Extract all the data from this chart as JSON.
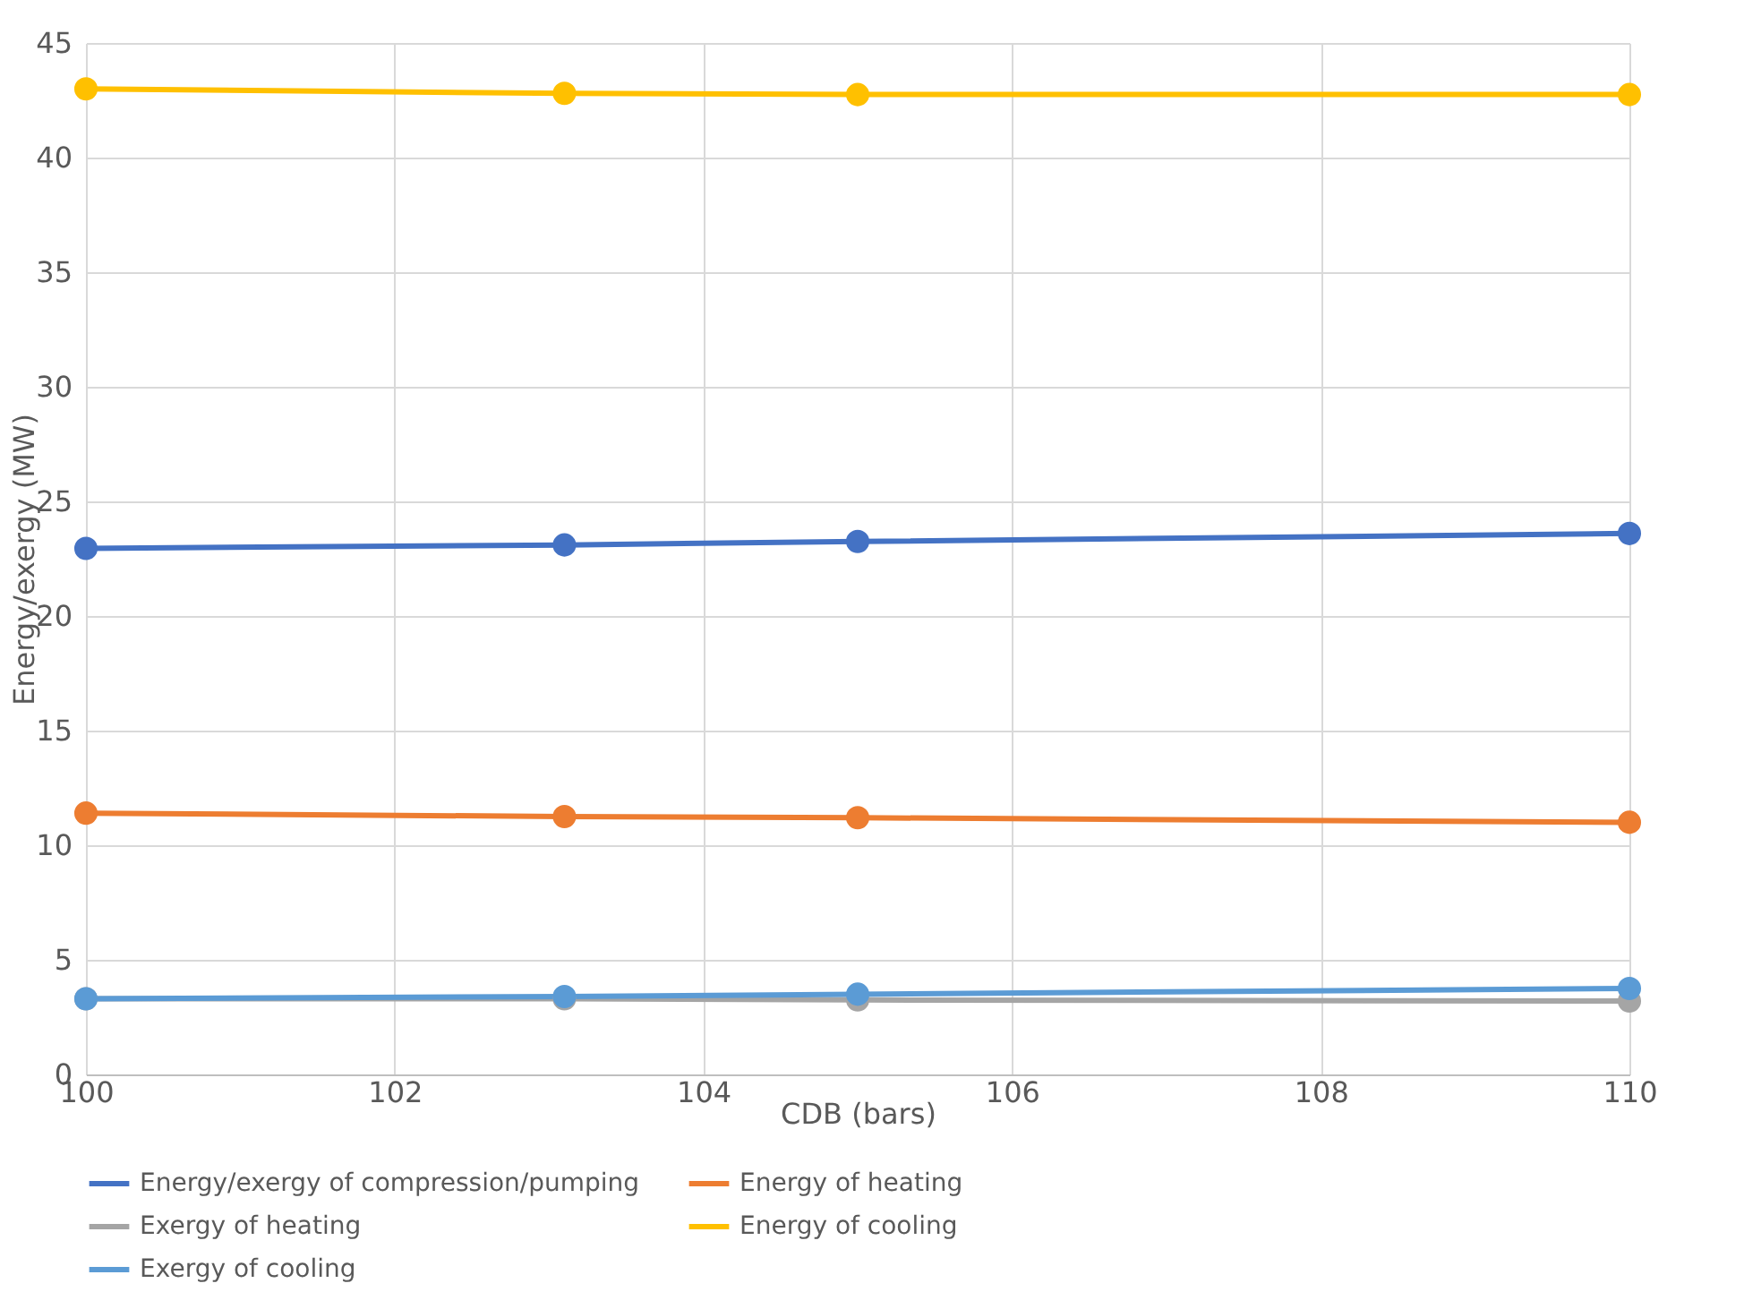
{
  "chart_data": {
    "type": "line",
    "xlabel": "CDB (bars)",
    "ylabel": "Energy/exergy (MW)",
    "x": [
      100,
      103.1,
      105,
      110
    ],
    "series": [
      {
        "name": "Energy/exergy of compression/pumping",
        "color": "#4472c4",
        "values": [
          22.95,
          23.1,
          23.25,
          23.6
        ]
      },
      {
        "name": "Energy of heating",
        "color": "#ed7d31",
        "values": [
          11.4,
          11.25,
          11.2,
          11.0
        ]
      },
      {
        "name": "Exergy of heating",
        "color": "#a5a5a5",
        "values": [
          3.3,
          3.3,
          3.25,
          3.2
        ]
      },
      {
        "name": "Energy of cooling",
        "color": "#ffc000",
        "values": [
          43.0,
          42.8,
          42.75,
          42.75
        ]
      },
      {
        "name": "Exergy of cooling",
        "color": "#5b9bd5",
        "values": [
          3.3,
          3.4,
          3.5,
          3.75
        ]
      }
    ],
    "xlim": [
      100,
      110
    ],
    "xticks": [
      100,
      102,
      104,
      106,
      108,
      110
    ],
    "ylim": [
      0,
      45
    ],
    "yticks": [
      0,
      5,
      10,
      15,
      20,
      25,
      30,
      35,
      40,
      45
    ],
    "grid": true,
    "legend": "bottom",
    "marker": "circle",
    "line_style": "solid"
  }
}
